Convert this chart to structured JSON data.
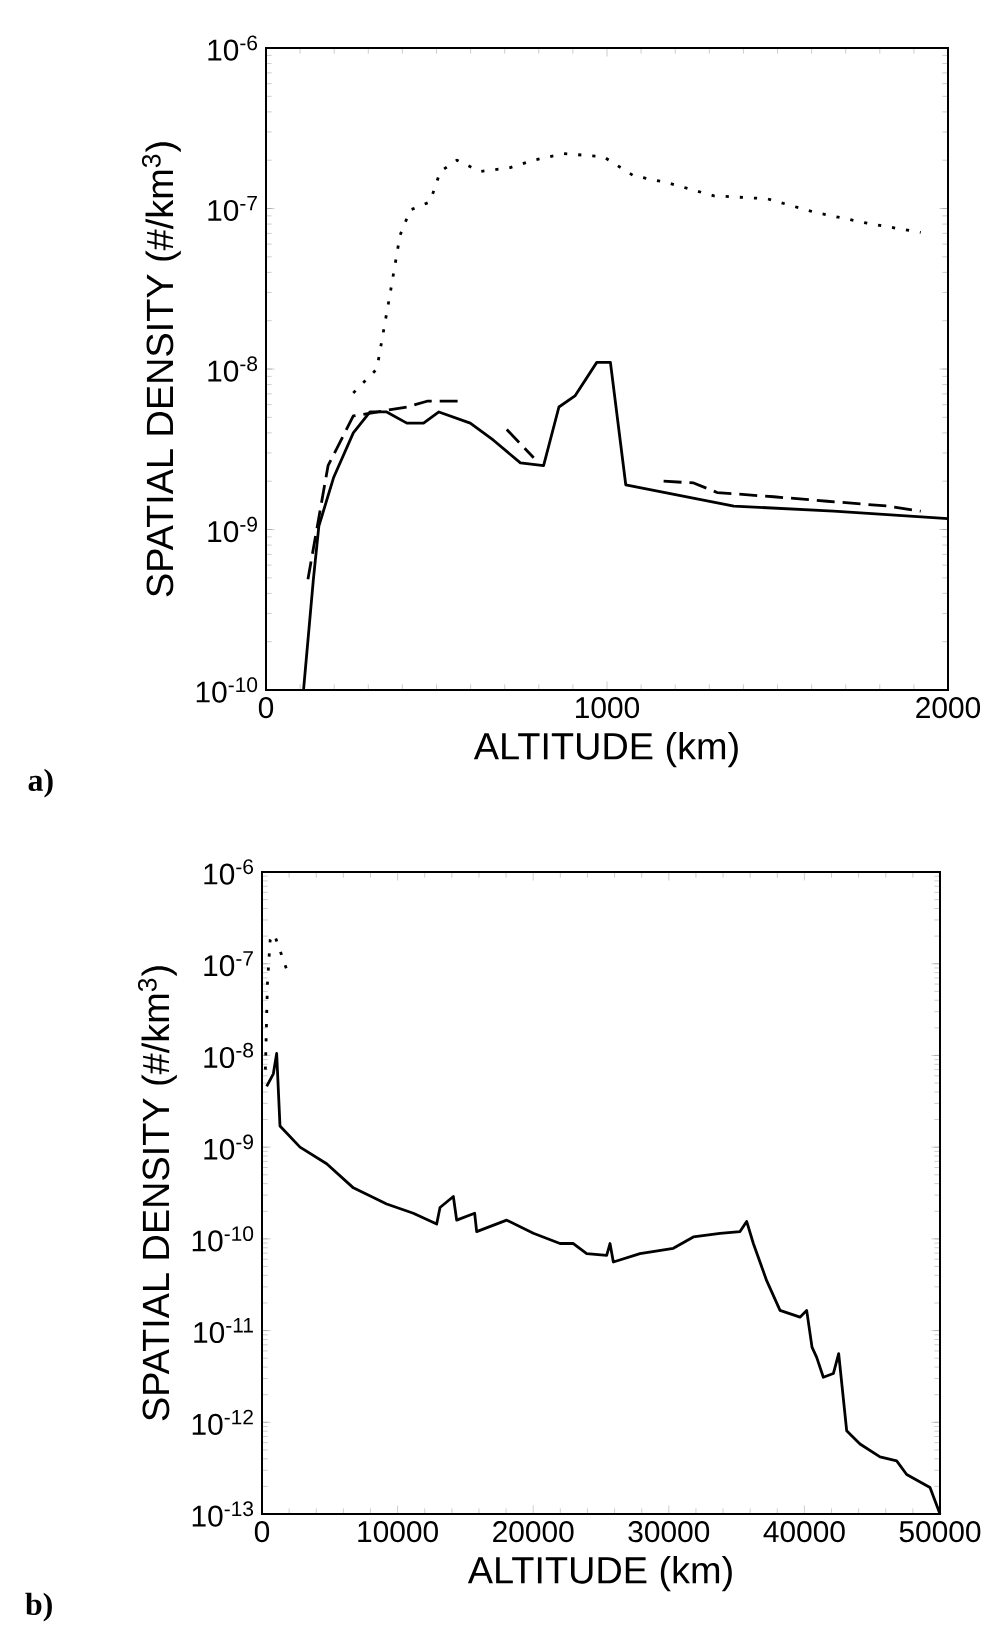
{
  "chart_data": [
    {
      "type": "line",
      "xlabel": "ALTITUDE (km)",
      "ylabel": "SPATIAL DENSITY  (#/km$^{3}$)",
      "annotations": [
        "a)"
      ],
      "log": "y",
      "xlim": [
        0,
        2000
      ],
      "xticks": [
        0,
        1000,
        2000
      ],
      "ylim": [
        1e-10,
        1e-06
      ],
      "yticks": [
        {
          "value": 1e-10,
          "label": "10$^{-10}$"
        },
        {
          "value": 1e-09,
          "label": "10$^{-9}$"
        },
        {
          "value": 1e-08,
          "label": "10$^{-8}$"
        },
        {
          "value": 1e-07,
          "label": "10$^{-7}$"
        },
        {
          "value": 1e-06,
          "label": "10$^{-6}$"
        }
      ],
      "series": [
        {
          "color": "#000000",
          "line_style": "solid",
          "x": [
            110,
            139,
            155,
            198,
            256,
            305,
            354,
            413,
            462,
            507,
            599,
            667,
            746,
            814,
            859,
            906,
            970,
            1010,
            1055,
            1372,
            1665,
            2000
          ],
          "values": [
            1e-10,
            4.9e-10,
            1.05e-09,
            2.1e-09,
            4e-09,
            5.4e-09,
            5.4e-09,
            4.6e-09,
            4.6e-09,
            5.4e-09,
            4.6e-09,
            3.6e-09,
            2.6e-09,
            2.5e-09,
            5.8e-09,
            6.8e-09,
            1.1e-08,
            1.1e-08,
            1.9e-09,
            1.4e-09,
            1.3e-09,
            1.17e-09
          ]
        },
        {
          "color": "#000000",
          "line_style": "dashed",
          "x": [
            123,
            182,
            256,
            413,
            472,
            566,
            636,
            706,
            785,
            976,
            1166,
            1254,
            1323,
            1489,
            1646,
            1822,
            1920
          ],
          "values": [
            4.9e-10,
            2.5e-09,
            5.1e-09,
            5.8e-09,
            6.3e-09,
            6.3e-09,
            null,
            4.2e-09,
            2.8e-09,
            null,
            2e-09,
            1.95e-09,
            1.7e-09,
            1.6e-09,
            1.5e-09,
            1.4e-09,
            1.3e-09
          ]
        },
        {
          "color": "#000000",
          "line_style": "dotted",
          "x": [
            256,
            325,
            364,
            393,
            423,
            481,
            511,
            560,
            628,
            716,
            785,
            873,
            990,
            1078,
            1176,
            1313,
            1470,
            1607,
            1763,
            1920
          ],
          "values": [
            7.1e-09,
            1e-08,
            2.95e-08,
            6.8e-08,
            9.8e-08,
            1.1e-07,
            1.7e-07,
            2e-07,
            1.7e-07,
            1.8e-07,
            2e-07,
            2.2e-07,
            2.1e-07,
            1.6e-07,
            1.45e-07,
            1.2e-07,
            1.15e-07,
            9.5e-08,
            8.1e-08,
            7.1e-08
          ]
        }
      ]
    },
    {
      "type": "line",
      "xlabel": "ALTITUDE (km)",
      "ylabel": "SPATIAL DENSITY  (#/km$^{3}$)",
      "annotations": [
        "b)"
      ],
      "log": "y",
      "xlim": [
        0,
        50000
      ],
      "xticks": [
        0,
        10000,
        20000,
        30000,
        40000,
        50000
      ],
      "ylim": [
        1e-13,
        1e-06
      ],
      "yticks": [
        {
          "value": 1e-13,
          "label": "10$^{-13}$"
        },
        {
          "value": 1e-12,
          "label": "10$^{-12}$"
        },
        {
          "value": 1e-11,
          "label": "10$^{-11}$"
        },
        {
          "value": 1e-10,
          "label": "10$^{-10}$"
        },
        {
          "value": 1e-09,
          "label": "10$^{-9}$"
        },
        {
          "value": 1e-08,
          "label": "10$^{-8}$"
        },
        {
          "value": 1e-07,
          "label": "10$^{-7}$"
        },
        {
          "value": 1e-06,
          "label": "10$^{-6}$"
        }
      ],
      "series": [
        {
          "color": "#000000",
          "line_style": "solid",
          "x": [
            344,
            836,
            1082,
            1327,
            2802,
            4769,
            6736,
            9194,
            11160,
            12881,
            13127,
            14110,
            14356,
            15683,
            15831,
            18044,
            20010,
            21977,
            22960,
            23943,
            25418,
            25664,
            25910,
            27876,
            30334,
            31809,
            33776,
            35251,
            35742,
            36234,
            37217,
            38201,
            39676,
            40167,
            40560,
            40905,
            41396,
            42134,
            42527,
            43117,
            44100,
            45575,
            46804,
            47542,
            49263,
            50000
          ],
          "values": [
            4.6e-09,
            6.3e-09,
            1.05e-08,
            1.7e-09,
            1e-09,
            6.6e-10,
            3.6e-10,
            2.4e-10,
            1.9e-10,
            1.45e-10,
            2.2e-10,
            2.9e-10,
            1.6e-10,
            1.9e-10,
            1.2e-10,
            1.6e-10,
            1.15e-10,
            8.9e-11,
            8.9e-11,
            6.9e-11,
            6.6e-11,
            8.9e-11,
            5.6e-11,
            6.9e-11,
            7.9e-11,
            1.05e-10,
            1.15e-10,
            1.2e-10,
            1.55e-10,
            8.9e-11,
            3.5e-11,
            1.66e-11,
            1.4e-11,
            1.66e-11,
            6.6e-12,
            5.1e-12,
            3.1e-12,
            3.4e-12,
            5.6e-12,
            8.1e-13,
            5.8e-13,
            4.2e-13,
            3.8e-13,
            2.7e-13,
            1.95e-13,
            1e-13
          ]
        },
        {
          "color": "#000000",
          "line_style": "dotted",
          "x": [
            250,
            400,
            600,
            900,
            1400,
            1900
          ],
          "values": [
            7e-09,
            6e-08,
            1.8e-07,
            2.1e-07,
            1.3e-07,
            8e-08
          ]
        }
      ]
    }
  ]
}
